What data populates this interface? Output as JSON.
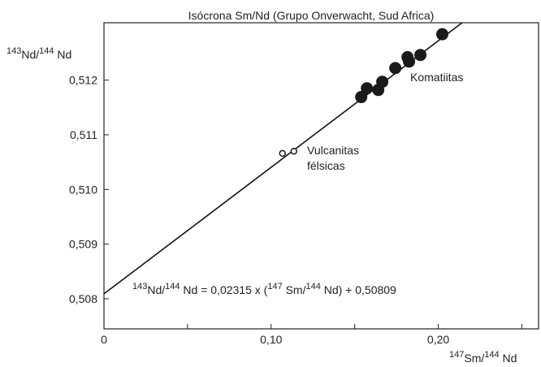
{
  "chart_data": {
    "type": "scatter",
    "title": "Isócrona Sm/Nd (Grupo Onverwacht, Sud Africa)",
    "ylabel": [
      {
        "text": "143",
        "sup": true
      },
      {
        "text": "Nd/",
        "sup": false
      },
      {
        "text": "144",
        "sup": true
      },
      {
        "text": " Nd",
        "sup": false
      }
    ],
    "xlabel": [
      {
        "text": "147",
        "sup": true
      },
      {
        "text": "Sm/",
        "sup": false
      },
      {
        "text": "144",
        "sup": true
      },
      {
        "text": " Nd",
        "sup": false
      }
    ],
    "xlim": [
      0,
      0.26
    ],
    "ylim": [
      0.50745,
      0.51305
    ],
    "xticks": [
      0,
      {
        "value": 0.1,
        "label": "0,10"
      },
      {
        "value": 0.2,
        "label": "0,20"
      }
    ],
    "xminor": [
      0.05,
      0.15,
      0.25
    ],
    "yticks": [
      {
        "value": 0.508,
        "label": "0,508"
      },
      {
        "value": 0.509,
        "label": "0,509"
      },
      {
        "value": 0.51,
        "label": "0,510"
      },
      {
        "value": 0.511,
        "label": "0,511"
      },
      {
        "value": 0.512,
        "label": "0,512"
      }
    ],
    "fit": {
      "slope": {
        "value": 0.02315,
        "label": "0,02315"
      },
      "intercept": {
        "value": 0.50809,
        "label": "0,50809"
      }
    },
    "equation": [
      {
        "text": "143",
        "sup": true
      },
      {
        "text": "Nd/",
        "sup": false
      },
      {
        "text": "144",
        "sup": true
      },
      {
        "text": " Nd = ",
        "sup": false
      },
      {
        "ref": "slope"
      },
      {
        "text": " x (",
        "sup": false
      },
      {
        "text": "147",
        "sup": true
      },
      {
        "text": " Sm/",
        "sup": false
      },
      {
        "text": "144",
        "sup": true
      },
      {
        "text": "  Nd) + ",
        "sup": false
      },
      {
        "ref": "intercept"
      }
    ],
    "series": [
      {
        "name": "Komatiitas",
        "marker": "filled",
        "color": "#1a1a1a",
        "x": [
          0.1539,
          0.1573,
          0.1641,
          0.1665,
          0.1743,
          0.1816,
          0.1825,
          0.1893,
          0.2024
        ],
        "values": [
          0.51169,
          0.51185,
          0.51182,
          0.51197,
          0.51222,
          0.51242,
          0.51234,
          0.51246,
          0.51284
        ]
      },
      {
        "name": "Vulcanitas félsicas",
        "marker": "open",
        "color": "#1a1a1a",
        "x": [
          0.1068,
          0.1136
        ],
        "values": [
          0.51066,
          0.5107
        ]
      }
    ]
  }
}
